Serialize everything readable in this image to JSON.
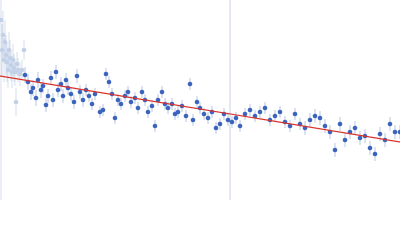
{
  "chart_data": {
    "type": "scatter",
    "xlim": [
      0,
      400
    ],
    "ylim": [
      0,
      200
    ],
    "series": [
      {
        "color": "#c3d1e8",
        "error_color": "#d6dfee",
        "x": [
          1,
          2,
          3,
          4,
          5,
          6,
          7,
          8,
          9,
          10,
          11,
          12,
          13,
          14,
          15,
          16,
          17,
          18,
          20,
          22,
          24
        ],
        "values": [
          180,
          150,
          165,
          140,
          158,
          145,
          138,
          130,
          150,
          142,
          135,
          128,
          140,
          132,
          128,
          98,
          136,
          130,
          126,
          130,
          150
        ],
        "errors": [
          28,
          26,
          24,
          22,
          22,
          20,
          20,
          18,
          18,
          18,
          16,
          16,
          16,
          14,
          14,
          14,
          12,
          12,
          12,
          10,
          10
        ]
      },
      {
        "color": "#3a64bd",
        "error_color": "#b9c7e2",
        "x": [
          25,
          28,
          31,
          33,
          36,
          38,
          41,
          43,
          46,
          48,
          51,
          53,
          56,
          58,
          61,
          63,
          66,
          68,
          71,
          74,
          77,
          80,
          83,
          86,
          89,
          92,
          95,
          100,
          103,
          106,
          109,
          112,
          115,
          118,
          121,
          125,
          128,
          131,
          135,
          138,
          142,
          145,
          148,
          152,
          155,
          158,
          162,
          165,
          168,
          172,
          175,
          178,
          182,
          186,
          190,
          193,
          197,
          200,
          204,
          208,
          212,
          216,
          220,
          224,
          228,
          232,
          236,
          240,
          245,
          250,
          255,
          260,
          265,
          270,
          275,
          280,
          285,
          290,
          295,
          300,
          305,
          310,
          315,
          320,
          325,
          330,
          335,
          340,
          345,
          350,
          355,
          360,
          365,
          370,
          375,
          380,
          385,
          390,
          395,
          400
        ],
        "values": [
          125,
          118,
          108,
          112,
          102,
          120,
          110,
          114,
          95,
          104,
          122,
          100,
          128,
          110,
          116,
          104,
          120,
          112,
          106,
          98,
          124,
          108,
          100,
          110,
          104,
          96,
          106,
          88,
          90,
          126,
          118,
          106,
          82,
          100,
          96,
          104,
          108,
          98,
          102,
          92,
          108,
          100,
          88,
          94,
          74,
          100,
          108,
          96,
          92,
          96,
          86,
          88,
          94,
          84,
          116,
          80,
          98,
          92,
          86,
          82,
          88,
          72,
          76,
          86,
          80,
          78,
          82,
          74,
          86,
          90,
          84,
          88,
          92,
          80,
          84,
          88,
          78,
          74,
          86,
          76,
          72,
          80,
          84,
          82,
          74,
          68,
          50,
          76,
          60,
          68,
          72,
          62,
          64,
          52,
          46,
          66,
          60,
          76,
          68,
          68
        ],
        "errors": [
          8,
          8,
          8,
          8,
          8,
          8,
          8,
          7,
          7,
          7,
          7,
          7,
          7,
          7,
          7,
          7,
          7,
          7,
          7,
          7,
          7,
          7,
          7,
          6,
          6,
          6,
          6,
          6,
          6,
          6,
          6,
          6,
          6,
          6,
          6,
          6,
          6,
          6,
          6,
          6,
          6,
          6,
          6,
          6,
          6,
          6,
          6,
          6,
          6,
          6,
          6,
          6,
          6,
          6,
          6,
          6,
          6,
          6,
          6,
          6,
          6,
          6,
          6,
          6,
          6,
          6,
          6,
          6,
          6,
          6,
          6,
          6,
          6,
          6,
          6,
          6,
          6,
          6,
          6,
          6,
          7,
          7,
          7,
          7,
          7,
          7,
          7,
          7,
          7,
          7,
          7,
          7,
          7,
          7,
          7,
          7,
          7,
          7,
          7,
          7
        ]
      }
    ],
    "fit": {
      "color": "#d9302a",
      "x": [
        0,
        400
      ],
      "values": [
        124,
        58
      ]
    },
    "vlines": [
      230
    ],
    "vline_color": "#c9d3e3"
  }
}
